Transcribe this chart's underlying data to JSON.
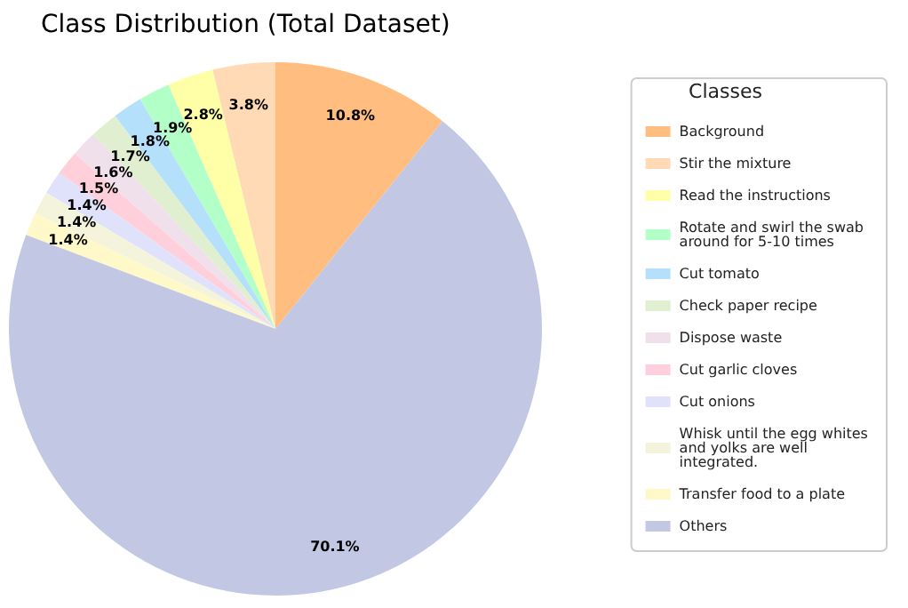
{
  "chart_data": {
    "type": "pie",
    "title": "Class Distribution (Total Dataset)",
    "legend_title": "Classes",
    "legend": "right",
    "categories": [
      "Background",
      "Stir the mixture",
      "Read the instructions",
      "Rotate and swirl the swab around for 5-10 times",
      "Cut tomato",
      "Check paper recipe",
      "Dispose waste",
      "Cut garlic cloves",
      "Cut onions",
      "Whisk until the egg whites and yolks are well integrated.",
      "Transfer food to a plate",
      "Others"
    ],
    "values": [
      10.8,
      3.8,
      2.8,
      1.9,
      1.8,
      1.7,
      1.6,
      1.5,
      1.4,
      1.4,
      1.4,
      70.1
    ],
    "value_labels": [
      "10.8%",
      "3.8%",
      "2.8%",
      "1.9%",
      "1.8%",
      "1.7%",
      "1.6%",
      "1.5%",
      "1.4%",
      "1.4%",
      "1.4%",
      "70.1%"
    ],
    "colors": [
      "#ffbe80",
      "#ffdab5",
      "#ffffa8",
      "#b3ffc8",
      "#b5e0fc",
      "#e0efd0",
      "#f0e0ec",
      "#ffd0dc",
      "#e0e2fc",
      "#f4f4dc",
      "#fff8c8",
      "#c2c8e4"
    ]
  }
}
